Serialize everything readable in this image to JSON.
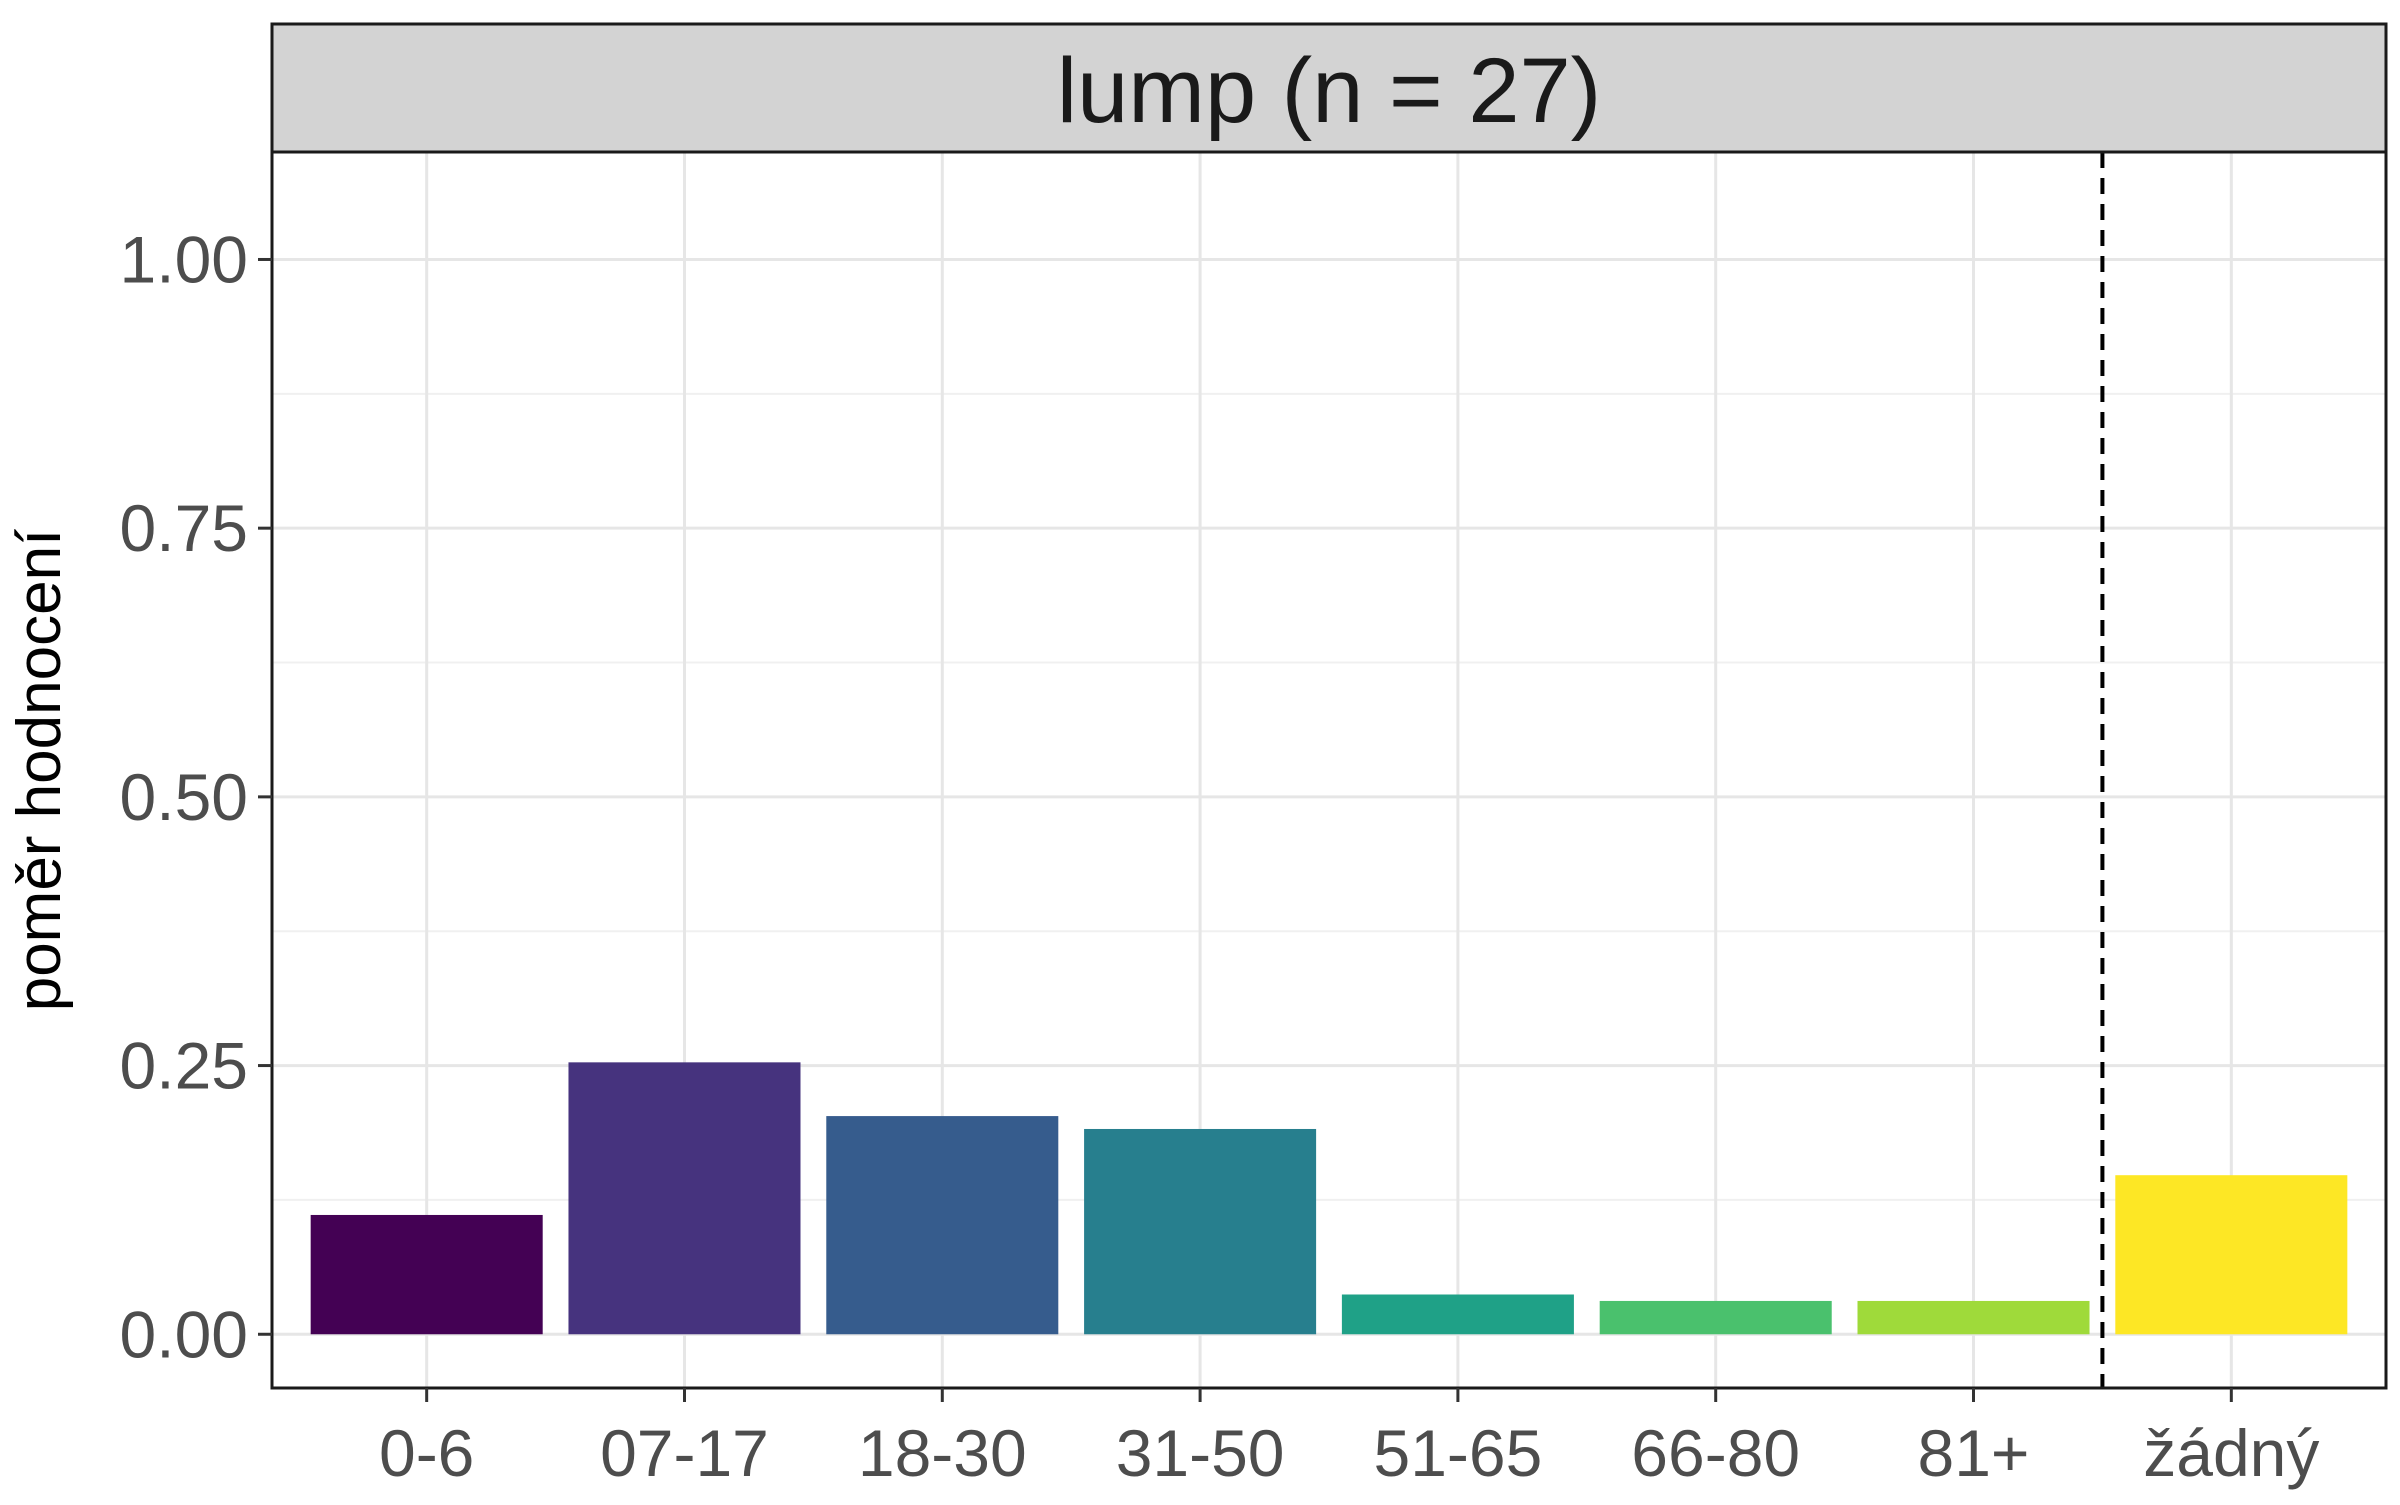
{
  "chart_data": {
    "type": "bar",
    "facet_label": "lump (n = 27)",
    "title": "",
    "xlabel": "",
    "ylabel": "poměr hodnocení",
    "ylim": [
      -0.05,
      1.1
    ],
    "yticks": [
      0.0,
      0.25,
      0.5,
      0.75,
      1.0
    ],
    "ytick_labels": [
      "0.00",
      "0.25",
      "0.50",
      "0.75",
      "1.00"
    ],
    "categories": [
      "0-6",
      "07-17",
      "18-30",
      "31-50",
      "51-65",
      "66-80",
      "81+",
      "žádný"
    ],
    "values": [
      0.111,
      0.253,
      0.203,
      0.191,
      0.037,
      0.031,
      0.031,
      0.148
    ],
    "colors": [
      "#440154",
      "#46337E",
      "#365C8D",
      "#277F8E",
      "#1FA187",
      "#4AC16D",
      "#9FDA3A",
      "#FDE725"
    ],
    "reference_line": {
      "between_categories": [
        "81+",
        "žádný"
      ],
      "style": "dashed",
      "color": "#000000"
    },
    "grid": true,
    "legend": "none",
    "panel_background": "#ffffff",
    "strip_background": "#d3d3d3"
  }
}
